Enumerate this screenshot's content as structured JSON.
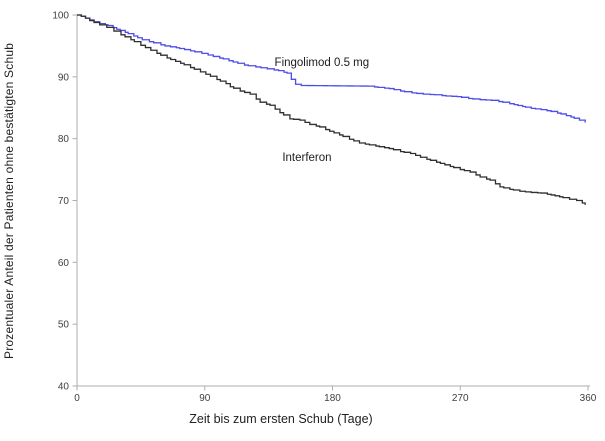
{
  "chart_data": {
    "type": "line",
    "subtype": "step_survival",
    "title": "",
    "xlabel": "Zeit bis zum ersten Schub (Tage)",
    "ylabel": "Prozentualer Anteil der Patienten ohne bestätigten Schub",
    "xlim": [
      0,
      360
    ],
    "ylim": [
      40,
      100
    ],
    "xticks": [
      0,
      90,
      180,
      270,
      360
    ],
    "yticks": [
      40,
      50,
      60,
      70,
      80,
      90,
      100
    ],
    "grid": false,
    "legend_position": "inline-labels",
    "axis_color": "#aeaeae",
    "tick_label_color": "#3f3f3f",
    "series": [
      {
        "name": "Fingolimod 0.5 mg",
        "color": "#4d4de8",
        "label_anchor": {
          "x": 172.5,
          "y": 92.3
        },
        "points": [
          [
            0,
            100
          ],
          [
            3,
            99.8
          ],
          [
            6,
            99.5
          ],
          [
            9,
            99.2
          ],
          [
            12,
            98.9
          ],
          [
            16,
            98.6
          ],
          [
            22,
            98.3
          ],
          [
            28,
            97.7
          ],
          [
            34,
            97.2
          ],
          [
            40,
            96.6
          ],
          [
            46,
            96.0
          ],
          [
            54,
            95.5
          ],
          [
            62,
            95.0
          ],
          [
            70,
            94.7
          ],
          [
            80,
            94.2
          ],
          [
            88,
            93.8
          ],
          [
            96,
            93.3
          ],
          [
            103,
            92.9
          ],
          [
            110,
            92.4
          ],
          [
            118,
            91.9
          ],
          [
            126,
            91.6
          ],
          [
            134,
            91.3
          ],
          [
            142,
            91.0
          ],
          [
            148,
            90.6
          ],
          [
            151,
            89.6
          ],
          [
            154,
            88.8
          ],
          [
            158,
            88.6
          ],
          [
            205,
            88.5
          ],
          [
            212,
            88.3
          ],
          [
            220,
            88.1
          ],
          [
            228,
            87.7
          ],
          [
            236,
            87.4
          ],
          [
            244,
            87.2
          ],
          [
            252,
            87.1
          ],
          [
            260,
            86.9
          ],
          [
            268,
            86.8
          ],
          [
            276,
            86.5
          ],
          [
            284,
            86.3
          ],
          [
            292,
            86.2
          ],
          [
            300,
            85.9
          ],
          [
            308,
            85.5
          ],
          [
            314,
            85.2
          ],
          [
            320,
            84.9
          ],
          [
            327,
            84.7
          ],
          [
            334,
            84.4
          ],
          [
            341,
            84.0
          ],
          [
            348,
            83.5
          ],
          [
            354,
            83.0
          ],
          [
            358,
            82.6
          ]
        ]
      },
      {
        "name": "Interferon",
        "color": "#2f2f2f",
        "label_anchor": {
          "x": 162,
          "y": 76.9
        },
        "points": [
          [
            0,
            100
          ],
          [
            3,
            99.8
          ],
          [
            6,
            99.5
          ],
          [
            9,
            99.1
          ],
          [
            12,
            98.8
          ],
          [
            16,
            98.4
          ],
          [
            21,
            98.0
          ],
          [
            26,
            97.4
          ],
          [
            31,
            96.8
          ],
          [
            38,
            96.0
          ],
          [
            45,
            95.1
          ],
          [
            52,
            94.3
          ],
          [
            59,
            93.5
          ],
          [
            66,
            92.8
          ],
          [
            73,
            92.2
          ],
          [
            80,
            91.5
          ],
          [
            87,
            90.8
          ],
          [
            94,
            90.1
          ],
          [
            101,
            89.3
          ],
          [
            105,
            88.9
          ],
          [
            108,
            88.4
          ],
          [
            115,
            87.7
          ],
          [
            122,
            87.2
          ],
          [
            129,
            85.9
          ],
          [
            136,
            85.4
          ],
          [
            143,
            84.2
          ],
          [
            150,
            83.2
          ],
          [
            157,
            83.0
          ],
          [
            164,
            82.3
          ],
          [
            171,
            81.9
          ],
          [
            178,
            81.2
          ],
          [
            185,
            80.6
          ],
          [
            192,
            79.9
          ],
          [
            199,
            79.3
          ],
          [
            206,
            79.0
          ],
          [
            213,
            78.7
          ],
          [
            220,
            78.4
          ],
          [
            228,
            77.9
          ],
          [
            235,
            77.6
          ],
          [
            242,
            77.0
          ],
          [
            249,
            76.5
          ],
          [
            256,
            76.0
          ],
          [
            263,
            75.5
          ],
          [
            270,
            75.0
          ],
          [
            277,
            74.6
          ],
          [
            284,
            73.8
          ],
          [
            291,
            73.3
          ],
          [
            298,
            72.2
          ],
          [
            305,
            71.8
          ],
          [
            312,
            71.5
          ],
          [
            320,
            71.3
          ],
          [
            327,
            71.2
          ],
          [
            334,
            70.9
          ],
          [
            340,
            70.6
          ],
          [
            347,
            70.2
          ],
          [
            352,
            70.0
          ],
          [
            356,
            69.6
          ],
          [
            358,
            69.3
          ]
        ]
      }
    ]
  }
}
